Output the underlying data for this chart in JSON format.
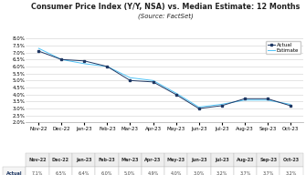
{
  "title": "Consumer Price Index (Y/Y, NSA) vs. Median Estimate: 12 Months",
  "subtitle": "(Source: FactSet)",
  "x_labels": [
    "Nov-22",
    "Dec-22",
    "Jan-23",
    "Feb-23",
    "Mar-23",
    "Apr-23",
    "May-23",
    "Jun-23",
    "Jul-23",
    "Aug-23",
    "Sep-23",
    "Oct-23"
  ],
  "actual_values": [
    7.1,
    6.5,
    6.4,
    6.0,
    5.0,
    4.9,
    4.0,
    3.0,
    3.2,
    3.7,
    3.7,
    3.2
  ],
  "estimate_values": [
    7.3,
    6.5,
    6.2,
    6.0,
    5.2,
    5.0,
    4.1,
    3.1,
    3.3,
    3.6,
    3.6,
    3.3
  ],
  "actual_color": "#1F3864",
  "estimate_color": "#4FC3F7",
  "ylim": [
    2.0,
    8.0
  ],
  "yticks": [
    2.0,
    2.5,
    3.0,
    3.5,
    4.0,
    4.5,
    5.0,
    5.5,
    6.0,
    6.5,
    7.0,
    7.5,
    8.0
  ],
  "legend_actual": "Actual",
  "legend_estimate": "Estimate",
  "bg_color": "#ffffff",
  "grid_color": "#d0d0d0",
  "title_fontsize": 5.8,
  "subtitle_fontsize": 5.0,
  "tick_fontsize": 4.0,
  "legend_fontsize": 4.0,
  "table_fontsize": 3.5
}
